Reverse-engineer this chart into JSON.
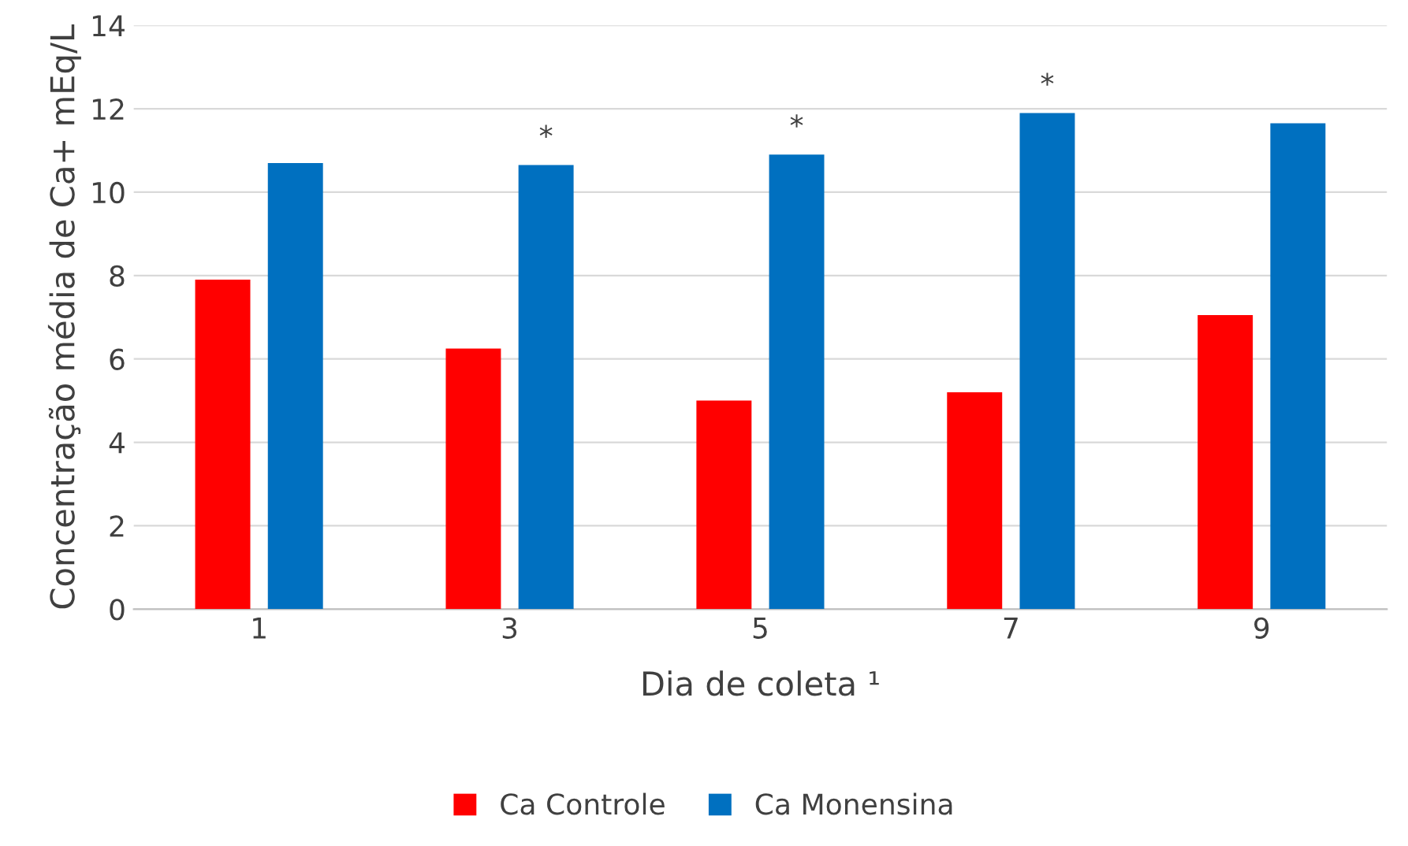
{
  "chart_data": {
    "type": "bar",
    "ylabel": "Concentração média de Ca+ mEq/L",
    "xlabel": "Dia de coleta ¹",
    "categories": [
      "1",
      "3",
      "5",
      "7",
      "9"
    ],
    "series": [
      {
        "name": "Ca Controle",
        "color": "#ff0000",
        "values": [
          7.9,
          6.25,
          5.0,
          5.2,
          7.05
        ]
      },
      {
        "name": "Ca Monensina",
        "color": "#0070c0",
        "values": [
          10.7,
          10.65,
          10.9,
          11.9,
          11.65
        ],
        "value_labels": [
          null,
          "*",
          "*",
          "*",
          null
        ]
      }
    ],
    "ylim": [
      0,
      14
    ],
    "yticks": [
      0,
      2,
      4,
      6,
      8,
      10,
      12,
      14
    ],
    "grid": "y",
    "legend": "bottom"
  }
}
